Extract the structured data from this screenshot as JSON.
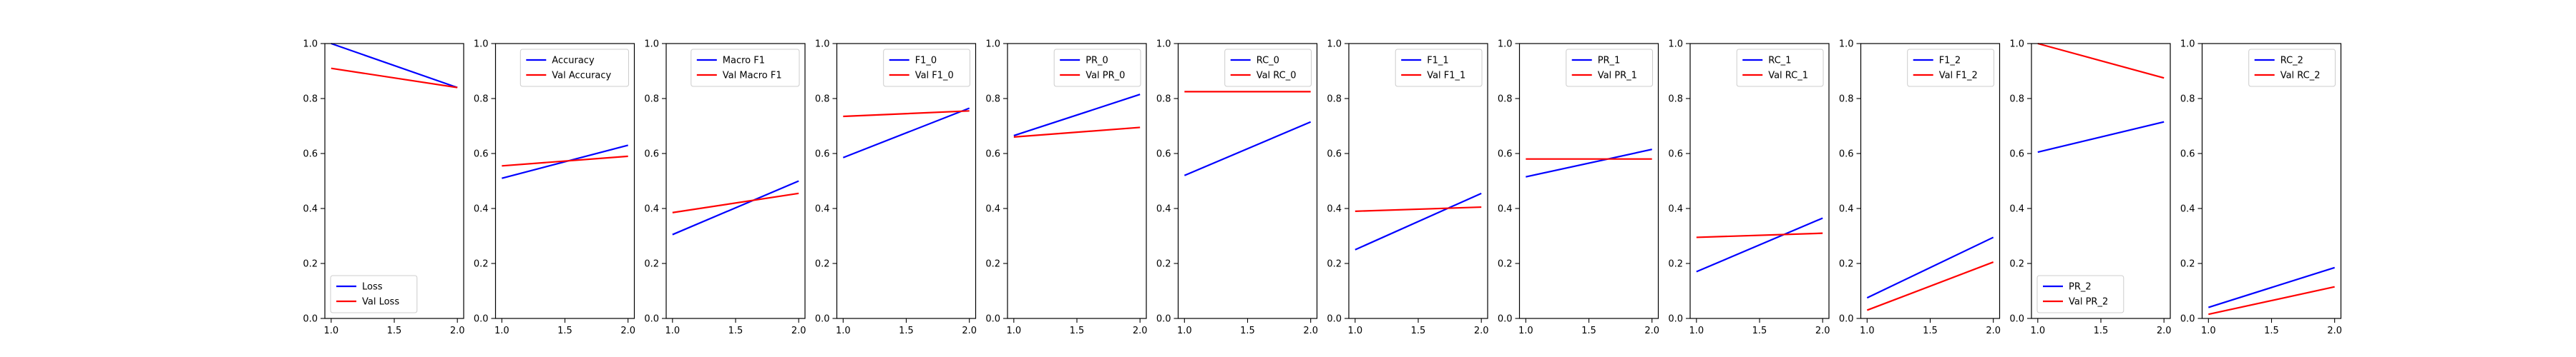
{
  "chart_data": {
    "type": "line",
    "legend_box_border": "#cccccc",
    "axis_color": "#000000",
    "panels": [
      {
        "x": [
          1.0,
          2.0
        ],
        "ylim": [
          0.0,
          1.0
        ],
        "legend_loc": "lower-left",
        "xticks": [
          "1.0",
          "1.5",
          "2.0"
        ],
        "yticks": [
          "0.0",
          "0.2",
          "0.4",
          "0.6",
          "0.8",
          "1.0"
        ],
        "series": [
          {
            "name": "Loss",
            "values": [
              1.0,
              0.84
            ],
            "color": "#0000ff"
          },
          {
            "name": "Val Loss",
            "values": [
              0.91,
              0.84
            ],
            "color": "#ff0000"
          }
        ]
      },
      {
        "x": [
          1.0,
          2.0
        ],
        "ylim": [
          0.0,
          1.0
        ],
        "legend_loc": "upper-right",
        "xticks": [
          "1.0",
          "1.5",
          "2.0"
        ],
        "yticks": [
          "0.0",
          "0.2",
          "0.4",
          "0.6",
          "0.8",
          "1.0"
        ],
        "series": [
          {
            "name": "Accuracy",
            "values": [
              0.51,
              0.63
            ],
            "color": "#0000ff"
          },
          {
            "name": "Val Accuracy",
            "values": [
              0.555,
              0.59
            ],
            "color": "#ff0000"
          }
        ]
      },
      {
        "x": [
          1.0,
          2.0
        ],
        "ylim": [
          0.0,
          1.0
        ],
        "legend_loc": "upper-right",
        "xticks": [
          "1.0",
          "1.5",
          "2.0"
        ],
        "yticks": [
          "0.0",
          "0.2",
          "0.4",
          "0.6",
          "0.8",
          "1.0"
        ],
        "series": [
          {
            "name": "Macro F1",
            "values": [
              0.305,
              0.5
            ],
            "color": "#0000ff"
          },
          {
            "name": "Val Macro F1",
            "values": [
              0.385,
              0.455
            ],
            "color": "#ff0000"
          }
        ]
      },
      {
        "x": [
          1.0,
          2.0
        ],
        "ylim": [
          0.0,
          1.0
        ],
        "legend_loc": "upper-right",
        "xticks": [
          "1.0",
          "1.5",
          "2.0"
        ],
        "yticks": [
          "0.0",
          "0.2",
          "0.4",
          "0.6",
          "0.8",
          "1.0"
        ],
        "series": [
          {
            "name": "F1_0",
            "values": [
              0.585,
              0.765
            ],
            "color": "#0000ff"
          },
          {
            "name": "Val F1_0",
            "values": [
              0.735,
              0.755
            ],
            "color": "#ff0000"
          }
        ]
      },
      {
        "x": [
          1.0,
          2.0
        ],
        "ylim": [
          0.0,
          1.0
        ],
        "legend_loc": "upper-right",
        "xticks": [
          "1.0",
          "1.5",
          "2.0"
        ],
        "yticks": [
          "0.0",
          "0.2",
          "0.4",
          "0.6",
          "0.8",
          "1.0"
        ],
        "series": [
          {
            "name": "PR_0",
            "values": [
              0.665,
              0.815
            ],
            "color": "#0000ff"
          },
          {
            "name": "Val PR_0",
            "values": [
              0.66,
              0.695
            ],
            "color": "#ff0000"
          }
        ]
      },
      {
        "x": [
          1.0,
          2.0
        ],
        "ylim": [
          0.0,
          1.0
        ],
        "legend_loc": "upper-right",
        "xticks": [
          "1.0",
          "1.5",
          "2.0"
        ],
        "yticks": [
          "0.0",
          "0.2",
          "0.4",
          "0.6",
          "0.8",
          "1.0"
        ],
        "series": [
          {
            "name": "RC_0",
            "values": [
              0.52,
              0.715
            ],
            "color": "#0000ff"
          },
          {
            "name": "Val RC_0",
            "values": [
              0.825,
              0.825
            ],
            "color": "#ff0000"
          }
        ]
      },
      {
        "x": [
          1.0,
          2.0
        ],
        "ylim": [
          0.0,
          1.0
        ],
        "legend_loc": "upper-right",
        "xticks": [
          "1.0",
          "1.5",
          "2.0"
        ],
        "yticks": [
          "0.0",
          "0.2",
          "0.4",
          "0.6",
          "0.8",
          "1.0"
        ],
        "series": [
          {
            "name": "F1_1",
            "values": [
              0.25,
              0.455
            ],
            "color": "#0000ff"
          },
          {
            "name": "Val F1_1",
            "values": [
              0.39,
              0.405
            ],
            "color": "#ff0000"
          }
        ]
      },
      {
        "x": [
          1.0,
          2.0
        ],
        "ylim": [
          0.0,
          1.0
        ],
        "legend_loc": "upper-right",
        "xticks": [
          "1.0",
          "1.5",
          "2.0"
        ],
        "yticks": [
          "0.0",
          "0.2",
          "0.4",
          "0.6",
          "0.8",
          "1.0"
        ],
        "series": [
          {
            "name": "PR_1",
            "values": [
              0.515,
              0.615
            ],
            "color": "#0000ff"
          },
          {
            "name": "Val PR_1",
            "values": [
              0.58,
              0.58
            ],
            "color": "#ff0000"
          }
        ]
      },
      {
        "x": [
          1.0,
          2.0
        ],
        "ylim": [
          0.0,
          1.0
        ],
        "legend_loc": "upper-right",
        "xticks": [
          "1.0",
          "1.5",
          "2.0"
        ],
        "yticks": [
          "0.0",
          "0.2",
          "0.4",
          "0.6",
          "0.8",
          "1.0"
        ],
        "series": [
          {
            "name": "RC_1",
            "values": [
              0.17,
              0.365
            ],
            "color": "#0000ff"
          },
          {
            "name": "Val RC_1",
            "values": [
              0.295,
              0.31
            ],
            "color": "#ff0000"
          }
        ]
      },
      {
        "x": [
          1.0,
          2.0
        ],
        "ylim": [
          0.0,
          1.0
        ],
        "legend_loc": "upper-right",
        "xticks": [
          "1.0",
          "1.5",
          "2.0"
        ],
        "yticks": [
          "0.0",
          "0.2",
          "0.4",
          "0.6",
          "0.8",
          "1.0"
        ],
        "series": [
          {
            "name": "F1_2",
            "values": [
              0.075,
              0.295
            ],
            "color": "#0000ff"
          },
          {
            "name": "Val F1_2",
            "values": [
              0.03,
              0.205
            ],
            "color": "#ff0000"
          }
        ]
      },
      {
        "x": [
          1.0,
          2.0
        ],
        "ylim": [
          0.0,
          1.0
        ],
        "legend_loc": "lower-left",
        "xticks": [
          "1.0",
          "1.5",
          "2.0"
        ],
        "yticks": [
          "0.0",
          "0.2",
          "0.4",
          "0.6",
          "0.8",
          "1.0"
        ],
        "series": [
          {
            "name": "PR_2",
            "values": [
              0.605,
              0.715
            ],
            "color": "#0000ff"
          },
          {
            "name": "Val PR_2",
            "values": [
              1.0,
              0.875
            ],
            "color": "#ff0000"
          }
        ]
      },
      {
        "x": [
          1.0,
          2.0
        ],
        "ylim": [
          0.0,
          1.0
        ],
        "legend_loc": "upper-right",
        "xticks": [
          "1.0",
          "1.5",
          "2.0"
        ],
        "yticks": [
          "0.0",
          "0.2",
          "0.4",
          "0.6",
          "0.8",
          "1.0"
        ],
        "series": [
          {
            "name": "RC_2",
            "values": [
              0.04,
              0.185
            ],
            "color": "#0000ff"
          },
          {
            "name": "Val RC_2",
            "values": [
              0.015,
              0.115
            ],
            "color": "#ff0000"
          }
        ]
      }
    ]
  }
}
